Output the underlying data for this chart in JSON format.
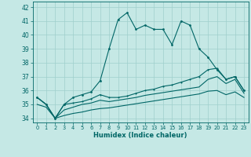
{
  "title": "",
  "xlabel": "Humidex (Indice chaleur)",
  "background_color": "#c5e8e5",
  "grid_color": "#9fcfcc",
  "line_color": "#006666",
  "x_values": [
    0,
    1,
    2,
    3,
    4,
    5,
    6,
    7,
    8,
    9,
    10,
    11,
    12,
    13,
    14,
    15,
    16,
    17,
    18,
    19,
    20,
    21,
    22,
    23
  ],
  "series1": [
    35.5,
    35.0,
    34.0,
    35.0,
    35.5,
    35.7,
    35.9,
    36.7,
    39.0,
    41.1,
    41.6,
    40.4,
    40.7,
    40.4,
    40.4,
    39.3,
    41.0,
    40.7,
    39.0,
    38.4,
    37.5,
    36.8,
    37.0,
    36.0
  ],
  "series2": [
    35.5,
    35.0,
    34.0,
    35.0,
    35.1,
    35.2,
    35.4,
    35.7,
    35.5,
    35.5,
    35.6,
    35.8,
    36.0,
    36.1,
    36.3,
    36.4,
    36.6,
    36.8,
    37.0,
    37.5,
    37.6,
    36.8,
    37.0,
    36.0
  ],
  "series3": [
    35.5,
    35.0,
    34.0,
    34.6,
    34.8,
    35.0,
    35.1,
    35.3,
    35.2,
    35.3,
    35.4,
    35.5,
    35.65,
    35.75,
    35.85,
    35.95,
    36.05,
    36.15,
    36.25,
    36.8,
    37.0,
    36.5,
    36.8,
    35.8
  ],
  "series4": [
    35.0,
    34.8,
    34.0,
    34.2,
    34.35,
    34.45,
    34.6,
    34.7,
    34.75,
    34.85,
    34.95,
    35.05,
    35.15,
    35.25,
    35.35,
    35.45,
    35.55,
    35.65,
    35.75,
    35.95,
    36.0,
    35.7,
    35.9,
    35.5
  ],
  "ylim": [
    33.7,
    42.4
  ],
  "yticks": [
    34,
    35,
    36,
    37,
    38,
    39,
    40,
    41,
    42
  ],
  "xticks": [
    0,
    1,
    2,
    3,
    4,
    5,
    6,
    7,
    8,
    9,
    10,
    11,
    12,
    13,
    14,
    15,
    16,
    17,
    18,
    19,
    20,
    21,
    22,
    23
  ]
}
